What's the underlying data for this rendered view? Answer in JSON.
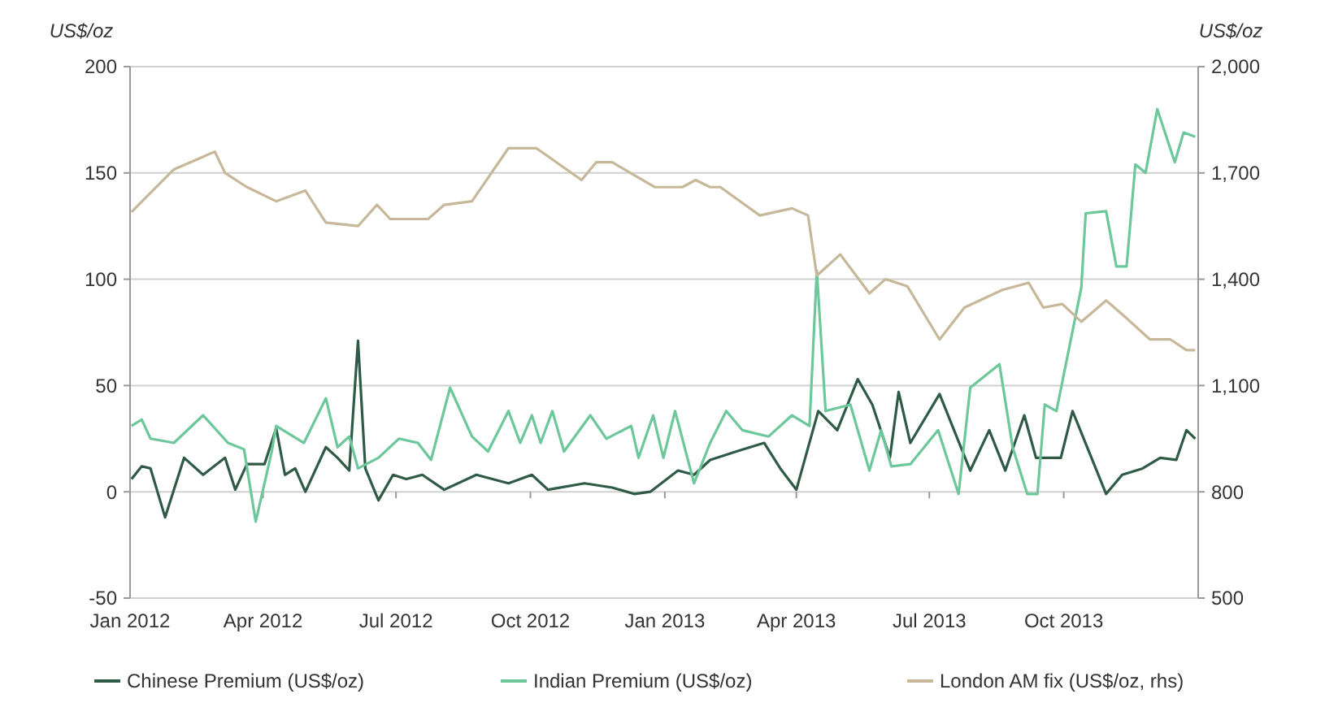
{
  "chart_data": {
    "type": "line",
    "ylabel": "US$/oz",
    "y2label": "US$/oz",
    "xlim": [
      "2012-01-01",
      "2014-01-01"
    ],
    "xticks": [
      {
        "value": "2012-01-01",
        "label": "Jan 2012"
      },
      {
        "value": "2012-04-01",
        "label": "Apr 2012"
      },
      {
        "value": "2012-07-01",
        "label": "Jul 2012"
      },
      {
        "value": "2012-10-01",
        "label": "Oct 2012"
      },
      {
        "value": "2013-01-01",
        "label": "Jan 2013"
      },
      {
        "value": "2013-04-01",
        "label": "Apr 2013"
      },
      {
        "value": "2013-07-01",
        "label": "Jul 2013"
      },
      {
        "value": "2013-10-01",
        "label": "Oct 2013"
      }
    ],
    "ylim": [
      -50,
      200
    ],
    "yticks": [
      -50,
      0,
      50,
      100,
      150,
      200
    ],
    "y2lim": [
      500,
      2000
    ],
    "y2ticks": [
      {
        "value": 500,
        "label": "500"
      },
      {
        "value": 800,
        "label": "800"
      },
      {
        "value": 1100,
        "label": "1,100"
      },
      {
        "value": 1400,
        "label": "1,400"
      },
      {
        "value": 1700,
        "label": "1,700"
      },
      {
        "value": 2000,
        "label": "2,000"
      }
    ],
    "grid": "y",
    "legend": "bottom",
    "marker": "none",
    "line_style": "solid",
    "series": [
      {
        "name": "Chinese Premium (US$/oz)",
        "color": "#2f5a46",
        "x": [
          "2012-01-02",
          "2012-01-09",
          "2012-01-15",
          "2012-01-25",
          "2012-02-07",
          "2012-02-20",
          "2012-03-06",
          "2012-03-13",
          "2012-03-21",
          "2012-04-02",
          "2012-04-10",
          "2012-04-16",
          "2012-04-23",
          "2012-04-30",
          "2012-05-14",
          "2012-05-22",
          "2012-05-30",
          "2012-06-05",
          "2012-06-10",
          "2012-06-19",
          "2012-06-29",
          "2012-07-08",
          "2012-07-19",
          "2012-08-03",
          "2012-08-25",
          "2012-09-16",
          "2012-10-02",
          "2012-10-13",
          "2012-11-07",
          "2012-11-26",
          "2012-12-11",
          "2012-12-22",
          "2013-01-10",
          "2013-01-21",
          "2013-02-01",
          "2013-02-19",
          "2013-03-10",
          "2013-03-21",
          "2013-04-01",
          "2013-04-16",
          "2013-04-29",
          "2013-05-13",
          "2013-05-23",
          "2013-06-04",
          "2013-06-10",
          "2013-06-18",
          "2013-07-08",
          "2013-07-29",
          "2013-08-11",
          "2013-08-22",
          "2013-09-04",
          "2013-09-12",
          "2013-09-29",
          "2013-10-07",
          "2013-10-30",
          "2013-11-10",
          "2013-11-24",
          "2013-12-06",
          "2013-12-17",
          "2013-12-24",
          "2013-12-30"
        ],
        "values": [
          6,
          12,
          11,
          -12,
          16,
          8,
          16,
          1,
          13,
          13,
          30,
          8,
          11,
          0,
          21,
          16,
          10,
          71,
          11,
          -4,
          8,
          6,
          8,
          1,
          8,
          4,
          8,
          1,
          4,
          2,
          -1,
          0,
          10,
          8,
          15,
          19,
          23,
          11,
          1,
          38,
          29,
          53,
          41,
          16,
          47,
          23,
          46,
          10,
          29,
          10,
          36,
          16,
          16,
          38,
          -1,
          8,
          11,
          16,
          15,
          29,
          25
        ]
      },
      {
        "name": "Indian Premium (US$/oz)",
        "color": "#6cc79a",
        "x": [
          "2012-01-02",
          "2012-01-09",
          "2012-01-15",
          "2012-01-31",
          "2012-02-20",
          "2012-03-08",
          "2012-03-19",
          "2012-03-27",
          "2012-04-07",
          "2012-04-10",
          "2012-04-29",
          "2012-05-14",
          "2012-05-22",
          "2012-05-30",
          "2012-06-05",
          "2012-06-19",
          "2012-07-03",
          "2012-07-16",
          "2012-07-25",
          "2012-08-07",
          "2012-08-22",
          "2012-09-02",
          "2012-09-16",
          "2012-09-24",
          "2012-10-02",
          "2012-10-08",
          "2012-10-16",
          "2012-10-24",
          "2012-11-11",
          "2012-11-22",
          "2012-12-09",
          "2012-12-14",
          "2012-12-24",
          "2012-12-31",
          "2013-01-08",
          "2013-01-21",
          "2013-02-01",
          "2013-02-12",
          "2013-02-23",
          "2013-03-13",
          "2013-03-29",
          "2013-04-10",
          "2013-04-15",
          "2013-04-21",
          "2013-05-08",
          "2013-05-21",
          "2013-05-29",
          "2013-06-05",
          "2013-06-18",
          "2013-07-07",
          "2013-07-21",
          "2013-07-29",
          "2013-08-18",
          "2013-08-27",
          "2013-09-06",
          "2013-09-13",
          "2013-09-18",
          "2013-09-26",
          "2013-10-13",
          "2013-10-16",
          "2013-10-30",
          "2013-11-06",
          "2013-11-13",
          "2013-11-19",
          "2013-11-26",
          "2013-12-04",
          "2013-12-16",
          "2013-12-22",
          "2013-12-30"
        ],
        "values": [
          31,
          34,
          25,
          23,
          36,
          23,
          20,
          -14,
          19,
          31,
          23,
          44,
          21,
          26,
          11,
          16,
          25,
          23,
          15,
          49,
          26,
          19,
          38,
          23,
          36,
          23,
          38,
          19,
          36,
          25,
          31,
          16,
          36,
          16,
          38,
          4,
          23,
          38,
          29,
          26,
          36,
          31,
          104,
          38,
          41,
          10,
          29,
          12,
          13,
          29,
          -1,
          49,
          60,
          21,
          -1,
          -1,
          41,
          38,
          96,
          131,
          132,
          106,
          106,
          154,
          150,
          180,
          155,
          169,
          167
        ]
      },
      {
        "name": "London AM fix (US$/oz, rhs)",
        "color": "#c8b89a",
        "axis": "y2",
        "x": [
          "2012-01-02",
          "2012-01-31",
          "2012-02-28",
          "2012-03-06",
          "2012-03-21",
          "2012-04-10",
          "2012-04-30",
          "2012-05-14",
          "2012-06-05",
          "2012-06-18",
          "2012-06-27",
          "2012-07-23",
          "2012-08-03",
          "2012-08-22",
          "2012-09-16",
          "2012-10-05",
          "2012-11-05",
          "2012-11-15",
          "2012-11-26",
          "2012-12-25",
          "2013-01-13",
          "2013-01-22",
          "2013-02-01",
          "2013-02-08",
          "2013-03-07",
          "2013-03-29",
          "2013-04-09",
          "2013-04-15",
          "2013-05-01",
          "2013-05-21",
          "2013-06-01",
          "2013-06-16",
          "2013-07-08",
          "2013-07-25",
          "2013-08-20",
          "2013-09-07",
          "2013-09-17",
          "2013-09-30",
          "2013-10-13",
          "2013-10-30",
          "2013-11-13",
          "2013-11-29",
          "2013-12-13",
          "2013-12-24",
          "2013-12-30"
        ],
        "values": [
          1590,
          1710,
          1760,
          1700,
          1660,
          1620,
          1650,
          1560,
          1550,
          1610,
          1570,
          1570,
          1610,
          1620,
          1770,
          1770,
          1680,
          1730,
          1730,
          1660,
          1660,
          1680,
          1660,
          1660,
          1580,
          1600,
          1580,
          1410,
          1470,
          1360,
          1400,
          1380,
          1230,
          1320,
          1370,
          1390,
          1320,
          1330,
          1280,
          1340,
          1290,
          1230,
          1230,
          1200,
          1200
        ]
      }
    ]
  }
}
